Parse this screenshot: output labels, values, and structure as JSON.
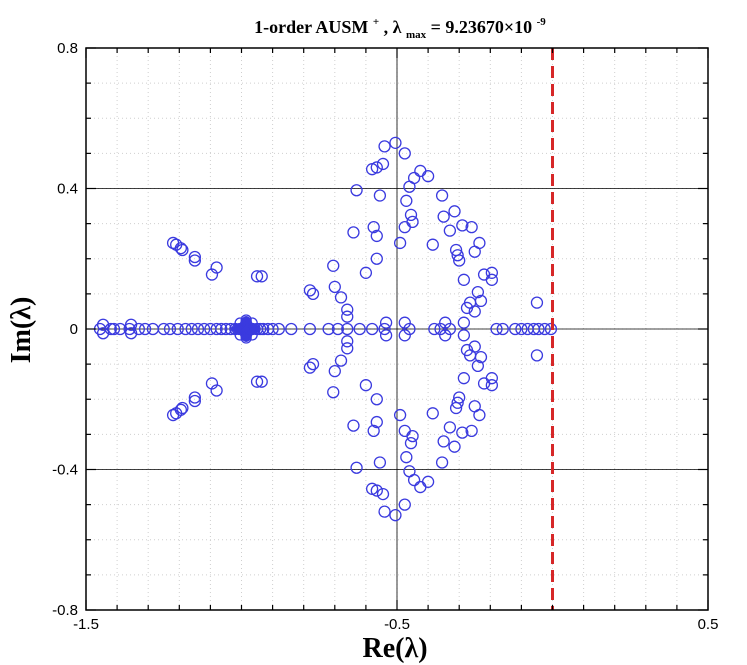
{
  "chart_data": {
    "type": "scatter",
    "title": {
      "prefix": "1-order AUSM",
      "sup": "+",
      "mid": ",  λ",
      "sub": "max",
      "equals": " = 9.23670×10",
      "exp": "-9"
    },
    "xlabel": "Re(λ)",
    "ylabel": "Im(λ)",
    "xlim": [
      -1.5,
      0.5
    ],
    "ylim": [
      -0.8,
      0.8
    ],
    "xticks": [
      "-1.5",
      "-0.5",
      "0.5"
    ],
    "yticks": [
      "0.8",
      "0.4",
      "0",
      "-0.4",
      "-0.8"
    ],
    "grid": true,
    "reference_line": {
      "x": 0.0,
      "style": "dashed",
      "color": "#d62728"
    },
    "marker": {
      "shape": "open-circle",
      "color": "#3a3adf"
    },
    "cluster_center": {
      "x": -0.985,
      "y": 0.0
    },
    "series": [
      {
        "points": [
          [
            -1.455,
            0.0
          ],
          [
            -1.445,
            0.012
          ],
          [
            -1.445,
            -0.012
          ],
          [
            -1.42,
            0.0
          ],
          [
            -1.41,
            0.0
          ],
          [
            -1.39,
            0.0
          ],
          [
            -1.36,
            0.0
          ],
          [
            -1.355,
            0.012
          ],
          [
            -1.355,
            -0.012
          ],
          [
            -1.33,
            0.0
          ],
          [
            -1.31,
            0.0
          ],
          [
            -1.285,
            0.0
          ],
          [
            -1.25,
            0.0
          ],
          [
            -1.23,
            0.0
          ],
          [
            -1.205,
            0.0
          ],
          [
            -1.18,
            0.0
          ],
          [
            -1.16,
            0.0
          ],
          [
            -1.14,
            0.0
          ],
          [
            -1.12,
            0.0
          ],
          [
            -1.1,
            0.0
          ],
          [
            -1.08,
            0.0
          ],
          [
            -1.065,
            0.0
          ],
          [
            -1.05,
            0.0
          ],
          [
            -1.035,
            0.0
          ],
          [
            -1.02,
            0.0
          ],
          [
            -1.005,
            0.0
          ],
          [
            -0.965,
            0.0
          ],
          [
            -0.95,
            0.0
          ],
          [
            -0.94,
            0.0
          ],
          [
            -0.93,
            0.0
          ],
          [
            -0.915,
            0.0
          ],
          [
            -0.9,
            0.0
          ],
          [
            -0.88,
            0.0
          ],
          [
            -1.22,
            0.245
          ],
          [
            -1.21,
            0.24
          ],
          [
            -1.195,
            0.23
          ],
          [
            -1.19,
            0.225
          ],
          [
            -1.15,
            0.205
          ],
          [
            -1.15,
            0.195
          ],
          [
            -1.095,
            0.155
          ],
          [
            -1.08,
            0.175
          ],
          [
            -0.95,
            0.15
          ],
          [
            -0.935,
            0.15
          ],
          [
            -1.22,
            -0.245
          ],
          [
            -1.21,
            -0.24
          ],
          [
            -1.195,
            -0.23
          ],
          [
            -1.19,
            -0.225
          ],
          [
            -1.15,
            -0.205
          ],
          [
            -1.15,
            -0.195
          ],
          [
            -1.095,
            -0.155
          ],
          [
            -1.08,
            -0.175
          ],
          [
            -0.95,
            -0.15
          ],
          [
            -0.935,
            -0.15
          ],
          [
            -0.84,
            0.0
          ],
          [
            -0.78,
            0.0
          ],
          [
            -0.72,
            0.0
          ],
          [
            -0.69,
            0.0
          ],
          [
            -0.66,
            0.0
          ],
          [
            -0.62,
            0.0
          ],
          [
            -0.58,
            0.0
          ],
          [
            -0.54,
            0.0
          ],
          [
            -0.46,
            0.0
          ],
          [
            -0.38,
            0.0
          ],
          [
            -0.36,
            0.0
          ],
          [
            -0.33,
            0.0
          ],
          [
            -0.535,
            0.018
          ],
          [
            -0.535,
            -0.018
          ],
          [
            -0.475,
            0.018
          ],
          [
            -0.475,
            -0.018
          ],
          [
            -0.345,
            0.018
          ],
          [
            -0.345,
            -0.018
          ],
          [
            -0.285,
            0.018
          ],
          [
            -0.285,
            -0.018
          ],
          [
            -0.78,
            0.11
          ],
          [
            -0.77,
            0.1
          ],
          [
            -0.78,
            -0.11
          ],
          [
            -0.77,
            -0.1
          ],
          [
            -0.7,
            0.12
          ],
          [
            -0.7,
            -0.12
          ],
          [
            -0.68,
            0.09
          ],
          [
            -0.68,
            -0.09
          ],
          [
            -0.66,
            0.055
          ],
          [
            -0.66,
            -0.055
          ],
          [
            -0.66,
            0.035
          ],
          [
            -0.66,
            -0.035
          ],
          [
            -0.705,
            0.18
          ],
          [
            -0.705,
            -0.18
          ],
          [
            -0.64,
            0.275
          ],
          [
            -0.64,
            -0.275
          ],
          [
            -0.575,
            0.29
          ],
          [
            -0.575,
            -0.29
          ],
          [
            -0.565,
            0.265
          ],
          [
            -0.565,
            -0.265
          ],
          [
            -0.565,
            0.2
          ],
          [
            -0.565,
            -0.2
          ],
          [
            -0.6,
            0.16
          ],
          [
            -0.6,
            -0.16
          ],
          [
            -0.63,
            0.395
          ],
          [
            -0.63,
            -0.395
          ],
          [
            -0.58,
            0.455
          ],
          [
            -0.58,
            -0.455
          ],
          [
            -0.545,
            0.47
          ],
          [
            -0.545,
            -0.47
          ],
          [
            -0.565,
            0.46
          ],
          [
            -0.565,
            -0.46
          ],
          [
            -0.555,
            0.38
          ],
          [
            -0.555,
            -0.38
          ],
          [
            -0.505,
            0.53
          ],
          [
            -0.505,
            -0.53
          ],
          [
            -0.475,
            0.5
          ],
          [
            -0.475,
            -0.5
          ],
          [
            -0.54,
            0.52
          ],
          [
            -0.54,
            -0.52
          ],
          [
            -0.49,
            0.245
          ],
          [
            -0.49,
            -0.245
          ],
          [
            -0.475,
            0.29
          ],
          [
            -0.475,
            -0.29
          ],
          [
            -0.47,
            0.365
          ],
          [
            -0.47,
            -0.365
          ],
          [
            -0.46,
            0.405
          ],
          [
            -0.46,
            -0.405
          ],
          [
            -0.455,
            0.325
          ],
          [
            -0.455,
            -0.325
          ],
          [
            -0.45,
            0.305
          ],
          [
            -0.45,
            -0.305
          ],
          [
            -0.445,
            0.43
          ],
          [
            -0.445,
            -0.43
          ],
          [
            -0.425,
            0.45
          ],
          [
            -0.425,
            -0.45
          ],
          [
            -0.4,
            0.435
          ],
          [
            -0.4,
            -0.435
          ],
          [
            -0.385,
            0.24
          ],
          [
            -0.385,
            -0.24
          ],
          [
            -0.355,
            0.38
          ],
          [
            -0.355,
            -0.38
          ],
          [
            -0.35,
            0.32
          ],
          [
            -0.35,
            -0.32
          ],
          [
            -0.33,
            0.28
          ],
          [
            -0.33,
            -0.28
          ],
          [
            -0.315,
            0.335
          ],
          [
            -0.315,
            -0.335
          ],
          [
            -0.31,
            0.225
          ],
          [
            -0.31,
            -0.225
          ],
          [
            -0.305,
            0.21
          ],
          [
            -0.305,
            -0.21
          ],
          [
            -0.3,
            0.195
          ],
          [
            -0.3,
            -0.195
          ],
          [
            -0.29,
            0.295
          ],
          [
            -0.29,
            -0.295
          ],
          [
            -0.26,
            0.29
          ],
          [
            -0.26,
            -0.29
          ],
          [
            -0.25,
            0.22
          ],
          [
            -0.25,
            -0.22
          ],
          [
            -0.235,
            0.245
          ],
          [
            -0.235,
            -0.245
          ],
          [
            -0.285,
            0.14
          ],
          [
            -0.285,
            -0.14
          ],
          [
            -0.265,
            0.075
          ],
          [
            -0.265,
            -0.075
          ],
          [
            -0.275,
            0.06
          ],
          [
            -0.275,
            -0.06
          ],
          [
            -0.23,
            0.08
          ],
          [
            -0.23,
            -0.08
          ],
          [
            -0.22,
            0.155
          ],
          [
            -0.22,
            -0.155
          ],
          [
            -0.195,
            0.14
          ],
          [
            -0.195,
            -0.14
          ],
          [
            -0.195,
            0.16
          ],
          [
            -0.195,
            -0.16
          ],
          [
            -0.24,
            0.105
          ],
          [
            -0.24,
            -0.105
          ],
          [
            -0.25,
            0.05
          ],
          [
            -0.25,
            -0.05
          ],
          [
            -0.05,
            0.075
          ],
          [
            -0.05,
            -0.075
          ],
          [
            -0.18,
            0.0
          ],
          [
            -0.16,
            0.0
          ],
          [
            -0.12,
            0.0
          ],
          [
            -0.1,
            0.0
          ],
          [
            -0.08,
            0.0
          ],
          [
            -0.06,
            0.0
          ],
          [
            -0.045,
            0.0
          ],
          [
            -0.025,
            0.0
          ],
          [
            -0.005,
            0.0
          ]
        ]
      }
    ]
  }
}
